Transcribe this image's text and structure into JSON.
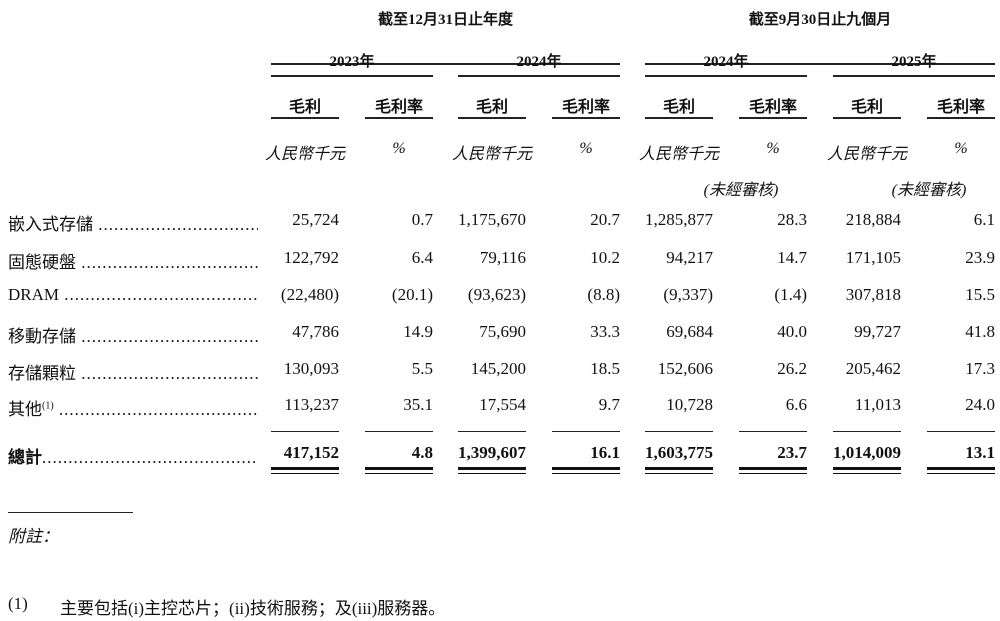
{
  "groups": [
    "截至12月31日止年度",
    "截至9月30日止九個月"
  ],
  "years": [
    "2023年",
    "2024年",
    "2024年",
    "2025年"
  ],
  "subheaders": [
    "毛利",
    "毛利率"
  ],
  "units": [
    "人民幣千元",
    "%"
  ],
  "unaudited": "(未經審核)",
  "rows": [
    {
      "label": "嵌入式存儲",
      "sup": "",
      "values": [
        "25,724",
        "0.7",
        "1,175,670",
        "20.7",
        "1,285,877",
        "28.3",
        "218,884",
        "6.1"
      ]
    },
    {
      "label": "固態硬盤",
      "sup": "",
      "values": [
        "122,792",
        "6.4",
        "79,116",
        "10.2",
        "94,217",
        "14.7",
        "171,105",
        "23.9"
      ]
    },
    {
      "label": "DRAM",
      "sup": "",
      "values": [
        "(22,480)",
        "(20.1)",
        "(93,623)",
        "(8.8)",
        "(9,337)",
        "(1.4)",
        "307,818",
        "15.5"
      ]
    },
    {
      "label": "移動存儲",
      "sup": "",
      "values": [
        "47,786",
        "14.9",
        "75,690",
        "33.3",
        "69,684",
        "40.0",
        "99,727",
        "41.8"
      ]
    },
    {
      "label": "存儲顆粒",
      "sup": "",
      "values": [
        "130,093",
        "5.5",
        "145,200",
        "18.5",
        "152,606",
        "26.2",
        "205,462",
        "17.3"
      ]
    },
    {
      "label": "其他",
      "sup": "(1)",
      "values": [
        "113,237",
        "35.1",
        "17,554",
        "9.7",
        "10,728",
        "6.6",
        "11,013",
        "24.0"
      ]
    }
  ],
  "total": {
    "label": "總計",
    "values": [
      "417,152",
      "4.8",
      "1,399,607",
      "16.1",
      "1,603,775",
      "23.7",
      "1,014,009",
      "13.1"
    ]
  },
  "notes_title": "附註：",
  "footnote": {
    "marker": "(1)",
    "text": "主要包括(i)主控芯片；(ii)技術服務；及(iii)服務器。"
  }
}
